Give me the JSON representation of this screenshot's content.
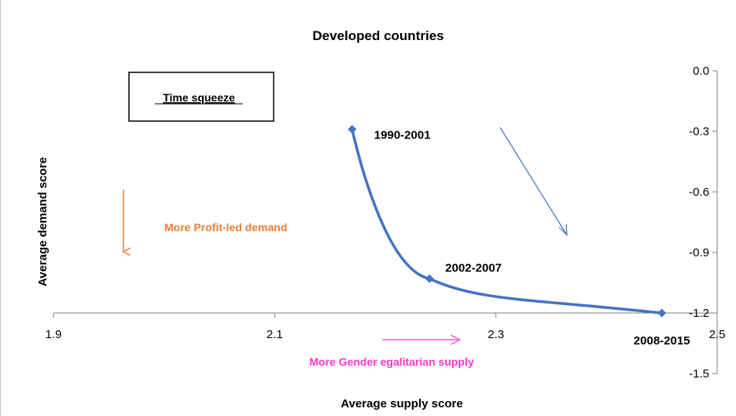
{
  "chart_data": {
    "type": "line",
    "title": "Developed countries",
    "xlabel": "Average supply score",
    "ylabel": "Average demand score",
    "xlim": [
      1.9,
      2.5
    ],
    "ylim": [
      -1.5,
      0.0
    ],
    "x_ticks": [
      "1.9",
      "2.1",
      "2.3",
      "2.5"
    ],
    "y_ticks": [
      "0.0",
      "-0.3",
      "-0.6",
      "-0.9",
      "-1.2",
      "-1.5"
    ],
    "y_tick_values": [
      0.0,
      -0.3,
      -0.6,
      -0.9,
      -1.2,
      -1.5
    ],
    "x_tick_values": [
      1.9,
      2.1,
      2.3,
      2.5
    ],
    "series": [
      {
        "points": [
          {
            "x": 2.17,
            "y": -0.29,
            "label": "1990-2001"
          },
          {
            "x": 2.24,
            "y": -1.03,
            "label": "2002-2007"
          },
          {
            "x": 2.45,
            "y": -1.2,
            "label": "2008-2015"
          }
        ],
        "color": "#4472c4"
      }
    ],
    "annotations": {
      "box_text": "Time squeeze",
      "demand_text": "More Profit-led demand",
      "supply_text": "More Gender egalitarian supply"
    },
    "colors": {
      "series": "#4472c4",
      "demand_arrow": "#ed7d31",
      "supply_arrow": "#ff33cc",
      "diag_arrow": "#4472c4"
    },
    "grid": false,
    "legend": "none"
  }
}
